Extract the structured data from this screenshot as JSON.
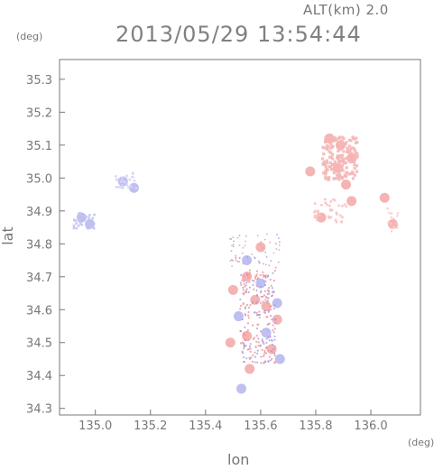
{
  "header": {
    "altitude": "ALT(km)  2.0",
    "timestamp": "2013/05/29  13:54:44"
  },
  "chart_data": {
    "type": "scatter",
    "title": "2013/05/29  13:54:44",
    "xlabel": "lon",
    "ylabel": "lat",
    "x_unit": "(deg)",
    "y_unit": "(deg)",
    "xlim": [
      134.87,
      136.18
    ],
    "ylim": [
      34.28,
      35.36
    ],
    "x_ticks": [
      "135.0",
      "135.2",
      "135.4",
      "135.6",
      "135.8",
      "136.0"
    ],
    "y_ticks": [
      "34.3",
      "34.4",
      "34.5",
      "34.6",
      "34.7",
      "34.8",
      "34.9",
      "35.0",
      "35.1",
      "35.2",
      "35.3"
    ],
    "grid": false,
    "colors": {
      "positive": "#f4a6a6",
      "negative": "#b4b4ee",
      "axis": "#777777"
    },
    "series": [
      {
        "values": [
          {
            "x": 135.85,
            "y": 35.12
          },
          {
            "x": 135.89,
            "y": 35.1
          },
          {
            "x": 135.93,
            "y": 35.06
          },
          {
            "x": 135.88,
            "y": 35.03
          },
          {
            "x": 135.91,
            "y": 34.98
          },
          {
            "x": 135.93,
            "y": 34.93
          },
          {
            "x": 135.82,
            "y": 34.88
          },
          {
            "x": 135.78,
            "y": 35.02
          },
          {
            "x": 136.08,
            "y": 34.86
          },
          {
            "x": 136.05,
            "y": 34.94
          },
          {
            "x": 135.55,
            "y": 34.7
          },
          {
            "x": 135.58,
            "y": 34.63
          },
          {
            "x": 135.62,
            "y": 34.61
          },
          {
            "x": 135.66,
            "y": 34.57
          },
          {
            "x": 135.55,
            "y": 34.52
          },
          {
            "x": 135.64,
            "y": 34.48
          },
          {
            "x": 135.49,
            "y": 34.5
          },
          {
            "x": 135.56,
            "y": 34.42
          },
          {
            "x": 135.5,
            "y": 34.66
          },
          {
            "x": 135.6,
            "y": 34.79
          }
        ]
      },
      {
        "values": [
          {
            "x": 134.95,
            "y": 34.88
          },
          {
            "x": 134.98,
            "y": 34.86
          },
          {
            "x": 135.1,
            "y": 34.99
          },
          {
            "x": 135.14,
            "y": 34.97
          },
          {
            "x": 135.55,
            "y": 34.75
          },
          {
            "x": 135.6,
            "y": 34.68
          },
          {
            "x": 135.66,
            "y": 34.62
          },
          {
            "x": 135.52,
            "y": 34.58
          },
          {
            "x": 135.62,
            "y": 34.53
          },
          {
            "x": 135.67,
            "y": 34.45
          },
          {
            "x": 135.53,
            "y": 34.36
          }
        ]
      }
    ]
  }
}
